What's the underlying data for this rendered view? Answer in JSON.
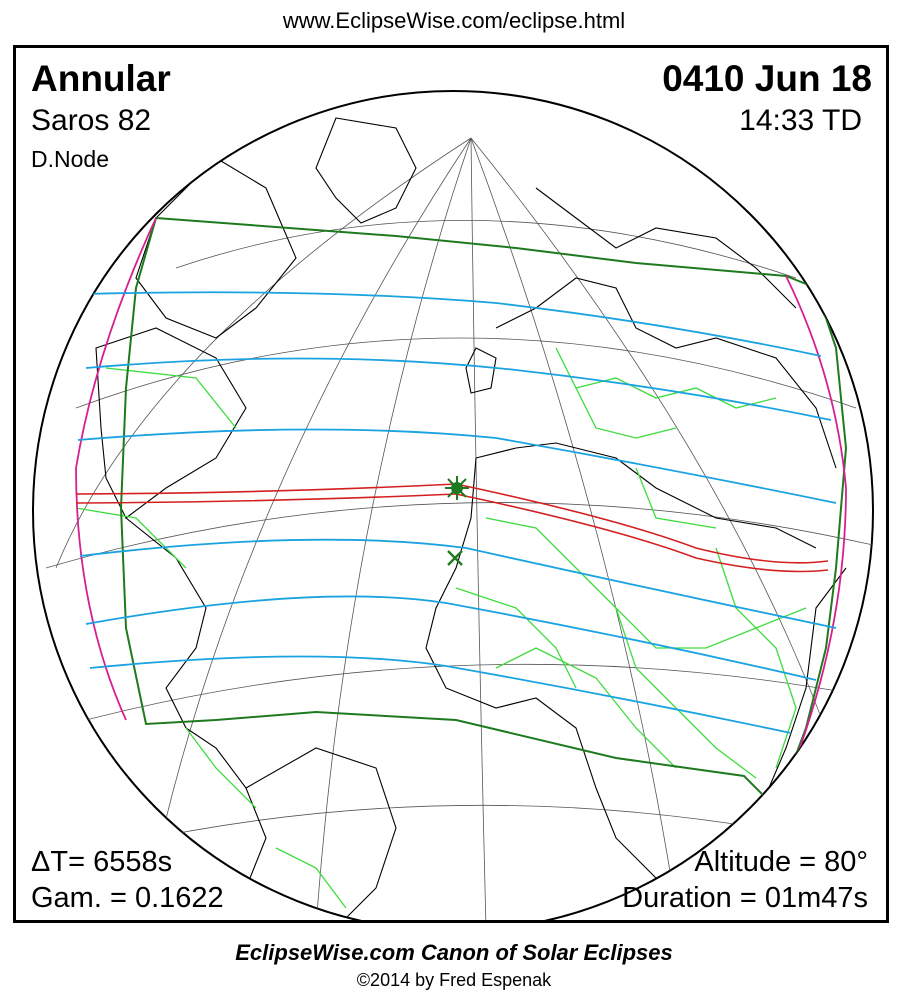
{
  "header": {
    "url": "www.EclipseWise.com/eclipse.html"
  },
  "eclipse": {
    "type": "Annular",
    "date": "0410 Jun 18",
    "saros": "Saros  82",
    "time": "14:33 TD",
    "node": "D.Node",
    "delta_t": "ΔT=   6558s",
    "gamma": "Gam. = 0.1622",
    "altitude": "Altitude = 80°",
    "duration": "Duration = 01m47s"
  },
  "footer": {
    "canon": "EclipseWise.com Canon of Solar Eclipses",
    "copyright": "©2014 by Fred Espenak"
  },
  "colors": {
    "central_path": "#d42020",
    "penumbra_limit": "#1e7a1e",
    "penumbra_lines": "#1aa3e0",
    "rise_set_curve": "#d6208f",
    "borders": "#3ddc3d",
    "coastline": "#000000"
  },
  "markers": {
    "greatest_eclipse": "star-marker",
    "greatest_duration": "cross-marker"
  }
}
